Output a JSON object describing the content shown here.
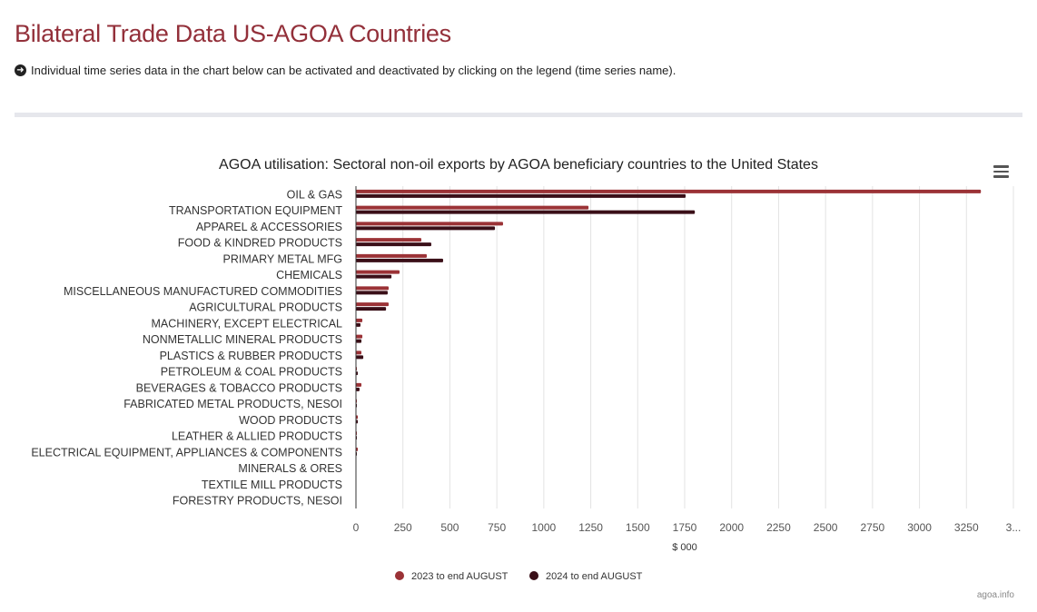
{
  "page": {
    "title": "Bilateral Trade Data US-AGOA Countries",
    "note": "Individual time series data in the chart below can be activated and deactivated by clicking on the legend (time series name).",
    "credit": "agoa.info"
  },
  "chart_data": {
    "type": "bar",
    "orientation": "horizontal",
    "title": "AGOA utilisation: Sectoral non-oil exports by AGOA beneficiary countries to the United States",
    "xlabel": "$ 000",
    "ylabel": "",
    "xlim": [
      0,
      3500
    ],
    "ticks": [
      "0",
      "250",
      "500",
      "750",
      "1000",
      "1250",
      "1500",
      "1750",
      "2000",
      "2250",
      "2500",
      "2750",
      "3000",
      "3250",
      "3..."
    ],
    "grid": true,
    "legend_position": "bottom-center",
    "categories": [
      "OIL & GAS",
      "TRANSPORTATION EQUIPMENT",
      "APPAREL & ACCESSORIES",
      "FOOD & KINDRED PRODUCTS",
      "PRIMARY METAL MFG",
      "CHEMICALS",
      "MISCELLANEOUS MANUFACTURED COMMODITIES",
      "AGRICULTURAL PRODUCTS",
      "MACHINERY, EXCEPT ELECTRICAL",
      "NONMETALLIC MINERAL PRODUCTS",
      "PLASTICS & RUBBER PRODUCTS",
      "PETROLEUM & COAL PRODUCTS",
      "BEVERAGES & TOBACCO PRODUCTS",
      "FABRICATED METAL PRODUCTS, NESOI",
      "WOOD PRODUCTS",
      "LEATHER & ALLIED PRODUCTS",
      "ELECTRICAL EQUIPMENT, APPLIANCES & COMPONENTS",
      "MINERALS & ORES",
      "TEXTILE MILL PRODUCTS",
      "FORESTRY PRODUCTS, NESOI"
    ],
    "series": [
      {
        "name": "2023 to end AUGUST",
        "color": "#9b3236",
        "values": [
          3327,
          1238,
          783,
          348,
          377,
          232,
          174,
          174,
          34,
          34,
          29,
          5,
          29,
          5,
          10,
          5,
          10,
          1,
          0.5,
          0.3
        ]
      },
      {
        "name": "2024 to end AUGUST",
        "color": "#3a0f18",
        "values": [
          1755,
          1804,
          740,
          401,
          464,
          189,
          169,
          160,
          24,
          29,
          39,
          10,
          19,
          5,
          10,
          5,
          5,
          0.5,
          0.3,
          0.2
        ]
      }
    ]
  }
}
